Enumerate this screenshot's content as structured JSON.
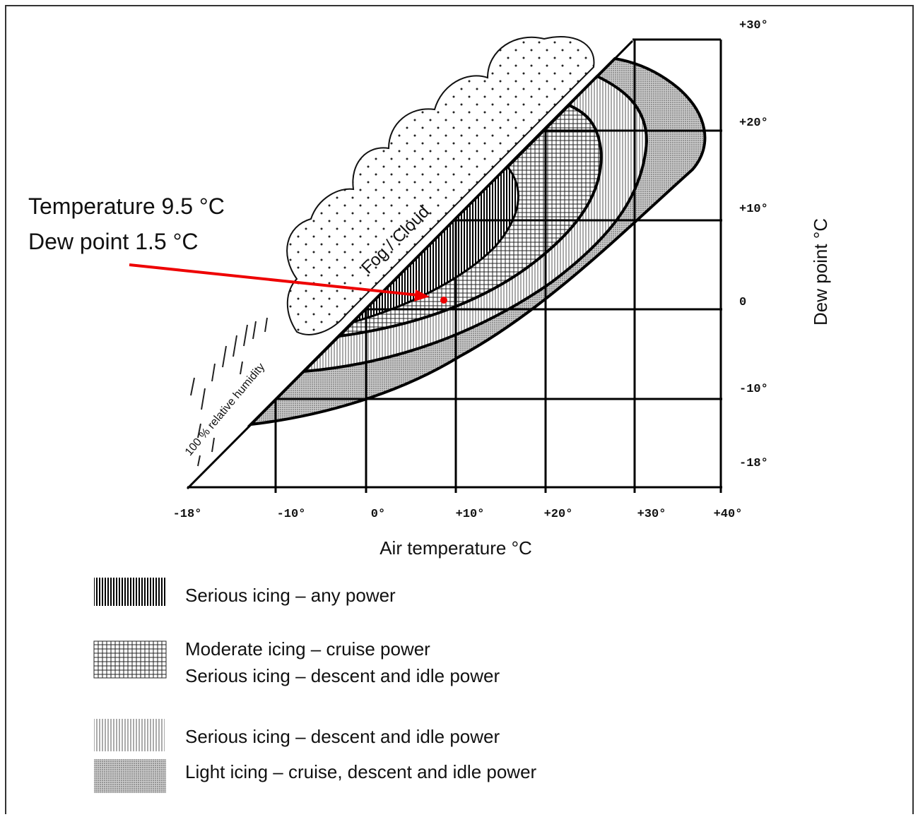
{
  "annotation": {
    "temperature": "Temperature 9.5 °C",
    "dew_point": "Dew point 1.5 °C"
  },
  "chart": {
    "x_axis": {
      "label": "Air temperature  °C",
      "ticks": [
        "-18°",
        "-10°",
        "0°",
        "+10°",
        "+20°",
        "+30°",
        "+40°"
      ]
    },
    "y_axis": {
      "label": "Dew point  °C",
      "ticks": [
        "+30°",
        "+20°",
        "+10°",
        "0",
        "-10°",
        "-18°"
      ]
    },
    "region_labels": {
      "fog": "Fog / Cloud",
      "humidity": "100 % relative humidity"
    }
  },
  "legend": [
    {
      "lines": [
        "Serious icing – any power"
      ]
    },
    {
      "lines": [
        "Moderate icing – cruise power",
        "Serious icing – descent and idle power"
      ]
    },
    {
      "lines": [
        "Serious icing – descent and idle power"
      ]
    },
    {
      "lines": [
        "Light icing – cruise, descent and idle power"
      ]
    }
  ]
}
